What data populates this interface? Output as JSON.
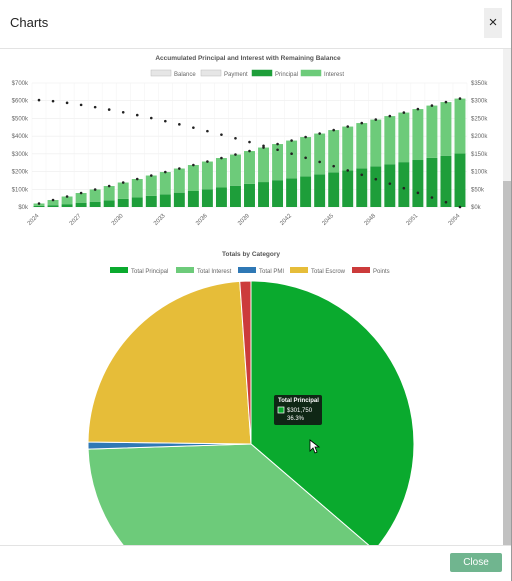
{
  "modal": {
    "title": "Charts",
    "close_icon": "×",
    "close_button": "Close"
  },
  "bar_chart_data": {
    "type": "bar",
    "title": "Accumulated Principal and Interest with Remaining Balance",
    "legend": [
      "Balance",
      "Payment",
      "Principal",
      "Interest"
    ],
    "legend_colors": [
      "#e6e6e6",
      "#e6e6e6",
      "#1e9e3a",
      "#6dcb7a"
    ],
    "x_tick_labels": [
      "2024",
      "2027",
      "2030",
      "2033",
      "2036",
      "2039",
      "2042",
      "2045",
      "2048",
      "2051",
      "2054"
    ],
    "y_left_ticks": [
      "$0k",
      "$100k",
      "$200k",
      "$300k",
      "$400k",
      "$500k",
      "$600k",
      "$700k"
    ],
    "y_right_ticks": [
      "$0k",
      "$50k",
      "$100k",
      "$150k",
      "$200k",
      "$250k",
      "$300k",
      "$350k"
    ],
    "ylim_left": [
      0,
      700000
    ],
    "ylim_right": [
      0,
      350000
    ],
    "principal_start": 6000,
    "principal_end": 301750,
    "total_end": 612000,
    "balance_start": 301750,
    "years": 31
  },
  "pie_chart_data": {
    "type": "pie",
    "title": "Totals by Category",
    "categories": [
      "Total Principal",
      "Total Interest",
      "Total PMI",
      "Total Escrow",
      "Points"
    ],
    "values": [
      36.3,
      38.2,
      0.7,
      23.7,
      1.1
    ],
    "colors": [
      "#0aaa2e",
      "#6dcb7a",
      "#2f78b5",
      "#e6bd39",
      "#cc3b3b"
    ],
    "tooltip": {
      "title": "Total Principal",
      "value": "$301,750",
      "percent": "36.3%"
    }
  }
}
